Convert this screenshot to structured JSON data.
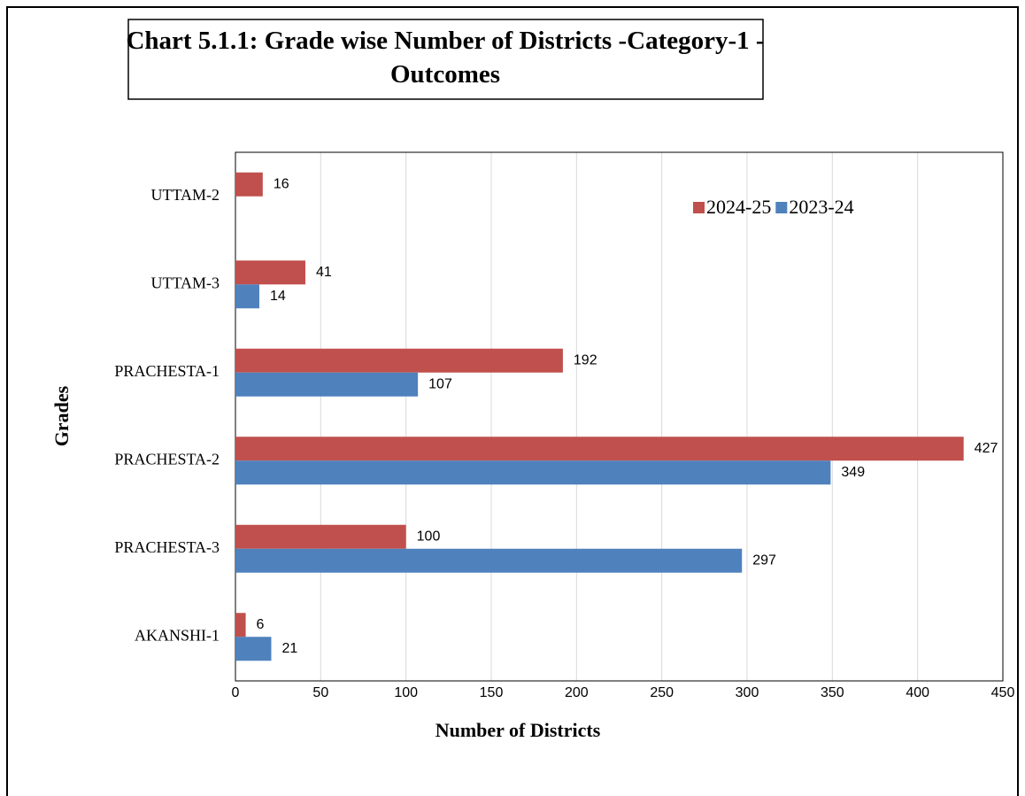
{
  "chart_data": {
    "type": "bar",
    "orientation": "horizontal",
    "title": "Chart 5.1.1: Grade wise Number of Districts -Category-1 - Outcomes",
    "xlabel": "Number of Districts",
    "ylabel": "Grades",
    "categories": [
      "UTTAM-2",
      "UTTAM-3",
      "PRACHESTA-1",
      "PRACHESTA-2",
      "PRACHESTA-3",
      "AKANSHI-1"
    ],
    "series": [
      {
        "name": "2024-25",
        "color": "#c0504d",
        "values": [
          16,
          41,
          192,
          427,
          100,
          6
        ]
      },
      {
        "name": "2023-24",
        "color": "#4f81bd",
        "values": [
          null,
          14,
          107,
          349,
          297,
          21
        ]
      }
    ],
    "xlim": [
      0,
      450
    ],
    "xticks": [
      0,
      50,
      100,
      150,
      200,
      250,
      300,
      350,
      400,
      450
    ],
    "grid": true,
    "legend": "upper right"
  }
}
